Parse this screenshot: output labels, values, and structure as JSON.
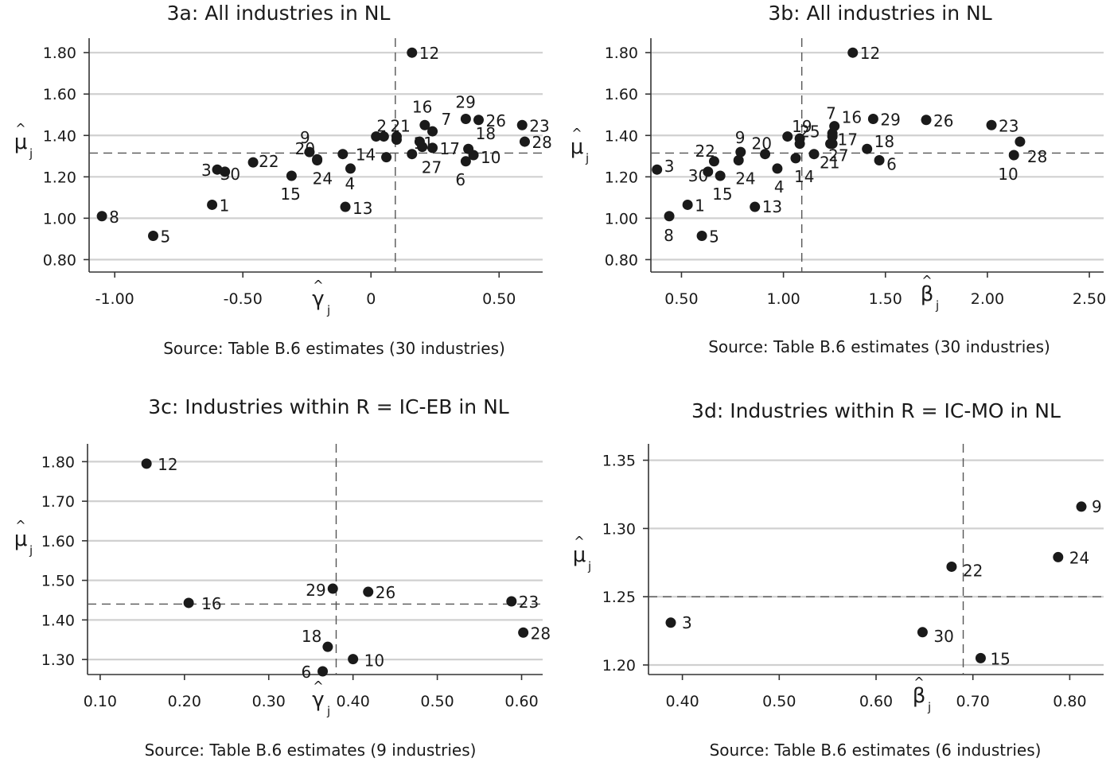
{
  "chart_data": [
    {
      "type": "scatter",
      "title": "3a: All industries in NL",
      "source": "Source: Table B.6 estimates (30 industries)",
      "xlabel": "γ̂j",
      "ylabel": "μ̂j",
      "x_sym": "γ",
      "y_sym": "μ",
      "xlim": [
        -1.1,
        0.67
      ],
      "ylim": [
        0.74,
        1.87
      ],
      "x_ticks": [
        -1.0,
        -0.5,
        0,
        0.5
      ],
      "x_tick_labels": [
        "-1.00",
        "-0.50",
        "0",
        "0.50"
      ],
      "y_ticks": [
        0.8,
        1.0,
        1.2,
        1.4,
        1.6,
        1.8
      ],
      "y_tick_labels": [
        "0.80",
        "1.00",
        "1.20",
        "1.40",
        "1.60",
        "1.80"
      ],
      "grid": "horizontal",
      "vline": 0.095,
      "hline": 1.315,
      "points": [
        {
          "label": "1",
          "x": -0.62,
          "y": 1.065
        },
        {
          "label": "2",
          "x": 0.05,
          "y": 1.395
        },
        {
          "label": "3",
          "x": -0.6,
          "y": 1.235
        },
        {
          "label": "4",
          "x": -0.08,
          "y": 1.24
        },
        {
          "label": "5",
          "x": -0.85,
          "y": 0.915
        },
        {
          "label": "6",
          "x": 0.37,
          "y": 1.275
        },
        {
          "label": "7",
          "x": 0.24,
          "y": 1.42
        },
        {
          "label": "8",
          "x": -1.05,
          "y": 1.01
        },
        {
          "label": "9",
          "x": -0.24,
          "y": 1.32
        },
        {
          "label": "10",
          "x": 0.4,
          "y": 1.305
        },
        {
          "label": "11",
          "x": 0.19,
          "y": 1.37
        },
        {
          "label": "12",
          "x": 0.16,
          "y": 1.8
        },
        {
          "label": "13",
          "x": -0.1,
          "y": 1.055
        },
        {
          "label": "14",
          "x": -0.11,
          "y": 1.31
        },
        {
          "label": "15",
          "x": -0.31,
          "y": 1.205
        },
        {
          "label": "16",
          "x": 0.21,
          "y": 1.45
        },
        {
          "label": "17",
          "x": 0.24,
          "y": 1.34
        },
        {
          "label": "18",
          "x": 0.38,
          "y": 1.335
        },
        {
          "label": "20",
          "x": -0.21,
          "y": 1.285
        },
        {
          "label": "21",
          "x": 0.1,
          "y": 1.38
        },
        {
          "label": "22",
          "x": -0.46,
          "y": 1.27
        },
        {
          "label": "23",
          "x": 0.59,
          "y": 1.45
        },
        {
          "label": "24",
          "x": -0.21,
          "y": 1.28
        },
        {
          "label": "26",
          "x": 0.42,
          "y": 1.475
        },
        {
          "label": "27",
          "x": 0.16,
          "y": 1.31
        },
        {
          "label": "28",
          "x": 0.6,
          "y": 1.37
        },
        {
          "label": "29",
          "x": 0.37,
          "y": 1.48
        },
        {
          "label": "30",
          "x": -0.57,
          "y": 1.225
        },
        {
          "label": "",
          "x": 0.02,
          "y": 1.395
        },
        {
          "label": "",
          "x": 0.06,
          "y": 1.295
        },
        {
          "label": "",
          "x": 0.2,
          "y": 1.345
        },
        {
          "label": "",
          "x": 0.1,
          "y": 1.395
        }
      ]
    },
    {
      "type": "scatter",
      "title": "3b: All industries in NL",
      "source": "Source: Table B.6 estimates (30 industries)",
      "xlabel": "β̂j",
      "ylabel": "μ̂j",
      "x_sym": "β",
      "y_sym": "μ",
      "xlim": [
        0.35,
        2.57
      ],
      "ylim": [
        0.74,
        1.87
      ],
      "x_ticks": [
        0.5,
        1.0,
        1.5,
        2.0,
        2.5
      ],
      "x_tick_labels": [
        "0.50",
        "1.00",
        "1.50",
        "2.00",
        "2.50"
      ],
      "y_ticks": [
        0.8,
        1.0,
        1.2,
        1.4,
        1.6,
        1.8
      ],
      "y_tick_labels": [
        "0.80",
        "1.00",
        "1.20",
        "1.40",
        "1.60",
        "1.80"
      ],
      "grid": "horizontal",
      "vline": 1.09,
      "hline": 1.315,
      "points": [
        {
          "label": "1",
          "x": 0.53,
          "y": 1.065
        },
        {
          "label": "3",
          "x": 0.38,
          "y": 1.235
        },
        {
          "label": "4",
          "x": 0.97,
          "y": 1.24
        },
        {
          "label": "5",
          "x": 0.6,
          "y": 0.915
        },
        {
          "label": "6",
          "x": 1.47,
          "y": 1.28
        },
        {
          "label": "7",
          "x": 1.24,
          "y": 1.41
        },
        {
          "label": "8",
          "x": 0.44,
          "y": 1.01
        },
        {
          "label": "9",
          "x": 0.79,
          "y": 1.32
        },
        {
          "label": "10",
          "x": 2.13,
          "y": 1.305
        },
        {
          "label": "12",
          "x": 1.34,
          "y": 1.8
        },
        {
          "label": "13",
          "x": 0.86,
          "y": 1.055
        },
        {
          "label": "14",
          "x": 1.06,
          "y": 1.29
        },
        {
          "label": "15",
          "x": 0.69,
          "y": 1.205
        },
        {
          "label": "16",
          "x": 1.25,
          "y": 1.445
        },
        {
          "label": "17",
          "x": 1.23,
          "y": 1.36
        },
        {
          "label": "18",
          "x": 1.41,
          "y": 1.335
        },
        {
          "label": "19",
          "x": 1.08,
          "y": 1.385
        },
        {
          "label": "20",
          "x": 0.91,
          "y": 1.31
        },
        {
          "label": "21",
          "x": 1.15,
          "y": 1.31
        },
        {
          "label": "22",
          "x": 0.66,
          "y": 1.275
        },
        {
          "label": "23",
          "x": 2.02,
          "y": 1.45
        },
        {
          "label": "24",
          "x": 0.78,
          "y": 1.28
        },
        {
          "label": "25",
          "x": 1.08,
          "y": 1.36
        },
        {
          "label": "26",
          "x": 1.7,
          "y": 1.475
        },
        {
          "label": "27",
          "x": 1.24,
          "y": 1.36
        },
        {
          "label": "28",
          "x": 2.16,
          "y": 1.37
        },
        {
          "label": "29",
          "x": 1.44,
          "y": 1.48
        },
        {
          "label": "30",
          "x": 0.63,
          "y": 1.225
        },
        {
          "label": "",
          "x": 1.02,
          "y": 1.395
        },
        {
          "label": "",
          "x": 1.24,
          "y": 1.395
        }
      ]
    },
    {
      "type": "scatter",
      "title": "3c: Industries within R = IC-EB in NL",
      "source": "Source: Table B.6 estimates (9 industries)",
      "xlabel": "γ̂j",
      "ylabel": "μ̂j",
      "x_sym": "γ",
      "y_sym": "μ",
      "xlim": [
        0.085,
        0.625
      ],
      "ylim": [
        1.262,
        1.845
      ],
      "x_ticks": [
        0.1,
        0.2,
        0.3,
        0.4,
        0.5,
        0.6
      ],
      "x_tick_labels": [
        "0.10",
        "0.20",
        "0.30",
        "0.40",
        "0.50",
        "0.60"
      ],
      "y_ticks": [
        1.3,
        1.4,
        1.5,
        1.6,
        1.7,
        1.8
      ],
      "y_tick_labels": [
        "1.30",
        "1.40",
        "1.50",
        "1.60",
        "1.70",
        "1.80"
      ],
      "grid": "horizontal",
      "vline": 0.38,
      "hline": 1.44,
      "points": [
        {
          "label": "12",
          "x": 0.155,
          "y": 1.795
        },
        {
          "label": "16",
          "x": 0.205,
          "y": 1.443
        },
        {
          "label": "29",
          "x": 0.376,
          "y": 1.479
        },
        {
          "label": "26",
          "x": 0.418,
          "y": 1.471
        },
        {
          "label": "23",
          "x": 0.588,
          "y": 1.447
        },
        {
          "label": "28",
          "x": 0.602,
          "y": 1.368
        },
        {
          "label": "18",
          "x": 0.37,
          "y": 1.332
        },
        {
          "label": "10",
          "x": 0.4,
          "y": 1.301
        },
        {
          "label": "6",
          "x": 0.364,
          "y": 1.27
        }
      ]
    },
    {
      "type": "scatter",
      "title": "3d: Industries within R = IC-MO in NL",
      "source": "Source: Table B.6 estimates (6 industries)",
      "xlabel": "β̂j",
      "ylabel": "μ̂j",
      "x_sym": "β",
      "y_sym": "μ",
      "xlim": [
        0.365,
        0.835
      ],
      "ylim": [
        1.193,
        1.362
      ],
      "x_ticks": [
        0.4,
        0.5,
        0.6,
        0.7,
        0.8
      ],
      "x_tick_labels": [
        "0.40",
        "0.50",
        "0.60",
        "0.70",
        "0.80"
      ],
      "y_ticks": [
        1.2,
        1.25,
        1.3,
        1.35
      ],
      "y_tick_labels": [
        "1.20",
        "1.25",
        "1.30",
        "1.35"
      ],
      "grid": "horizontal",
      "vline": 0.69,
      "hline": 1.25,
      "points": [
        {
          "label": "3",
          "x": 0.388,
          "y": 1.231
        },
        {
          "label": "22",
          "x": 0.678,
          "y": 1.272
        },
        {
          "label": "9",
          "x": 0.812,
          "y": 1.316
        },
        {
          "label": "24",
          "x": 0.788,
          "y": 1.279
        },
        {
          "label": "30",
          "x": 0.648,
          "y": 1.224
        },
        {
          "label": "15",
          "x": 0.708,
          "y": 1.205
        }
      ]
    }
  ]
}
